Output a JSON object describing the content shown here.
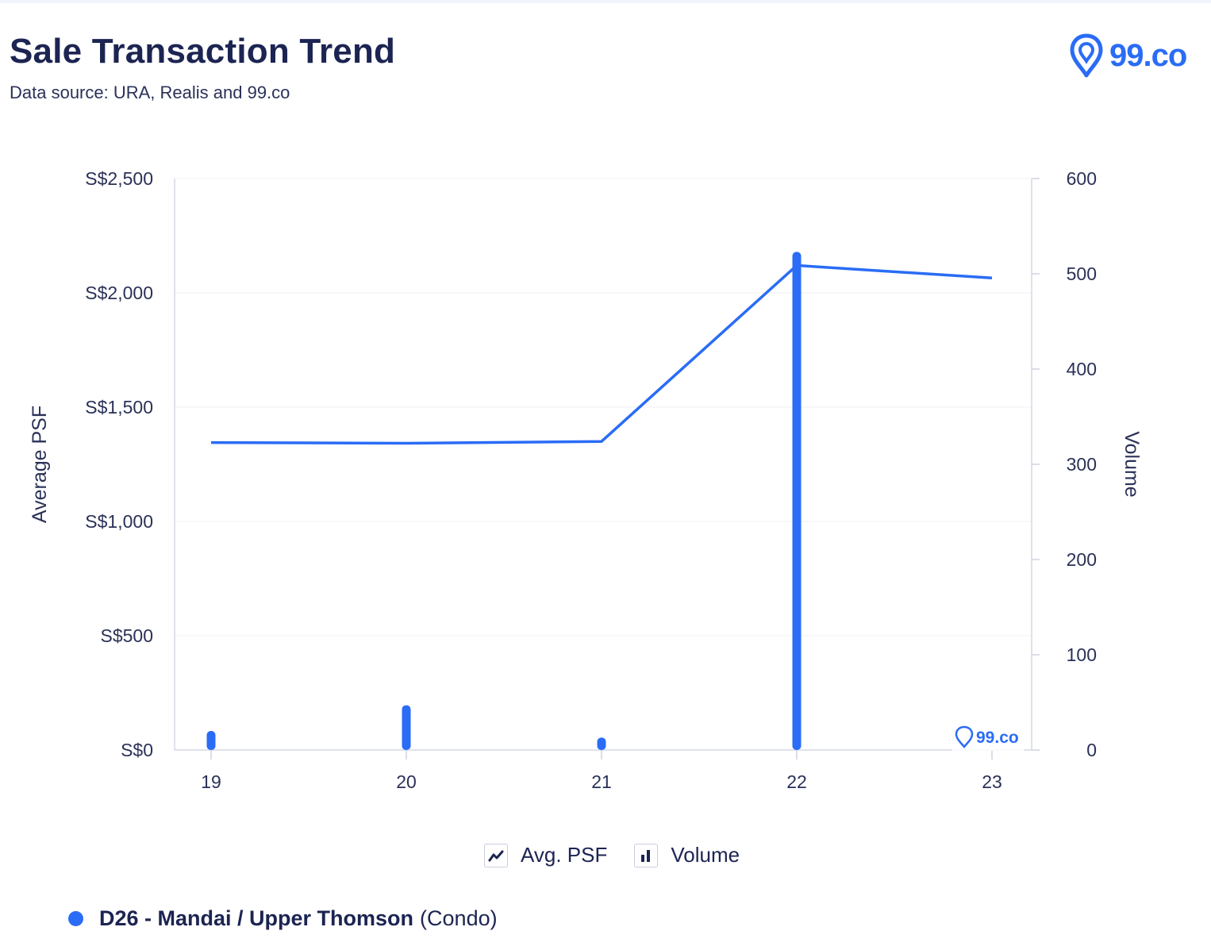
{
  "header": {
    "title": "Sale Transaction Trend",
    "subtitle": "Data source: URA, Realis and 99.co",
    "logo_text": "99.co"
  },
  "colors": {
    "accent": "#2a6cf6",
    "text": "#1c2452",
    "axis": "#d5d9e6"
  },
  "chart_data": {
    "type": "bar",
    "categories": [
      "19",
      "20",
      "21",
      "22",
      "23"
    ],
    "series": [
      {
        "name": "Avg. PSF",
        "type": "line",
        "axis": "left",
        "values": [
          1345,
          1342,
          1350,
          2120,
          2065
        ]
      },
      {
        "name": "Volume",
        "type": "bar",
        "axis": "right",
        "values": [
          20,
          47,
          13,
          523,
          0
        ]
      }
    ],
    "y_left": {
      "label": "Average PSF",
      "range": [
        0,
        2500
      ],
      "ticks": [
        0,
        500,
        1000,
        1500,
        2000,
        2500
      ],
      "tick_labels": [
        "S$0",
        "S$500",
        "S$1,000",
        "S$1,500",
        "S$2,000",
        "S$2,500"
      ]
    },
    "y_right": {
      "label": "Volume",
      "range": [
        0,
        600
      ],
      "ticks": [
        0,
        100,
        200,
        300,
        400,
        500,
        600
      ],
      "tick_labels": [
        "0",
        "100",
        "200",
        "300",
        "400",
        "500",
        "600"
      ]
    },
    "legend": [
      "Avg. PSF",
      "Volume"
    ],
    "legend_position": "bottom",
    "grid": true,
    "watermark": "99.co"
  },
  "legend_items": [
    {
      "label": "Avg. PSF",
      "icon": "line-chart-icon"
    },
    {
      "label": "Volume",
      "icon": "bar-chart-icon"
    }
  ],
  "series_filter": {
    "name": "D26 - Mandai / Upper Thomson",
    "type": "(Condo)"
  }
}
